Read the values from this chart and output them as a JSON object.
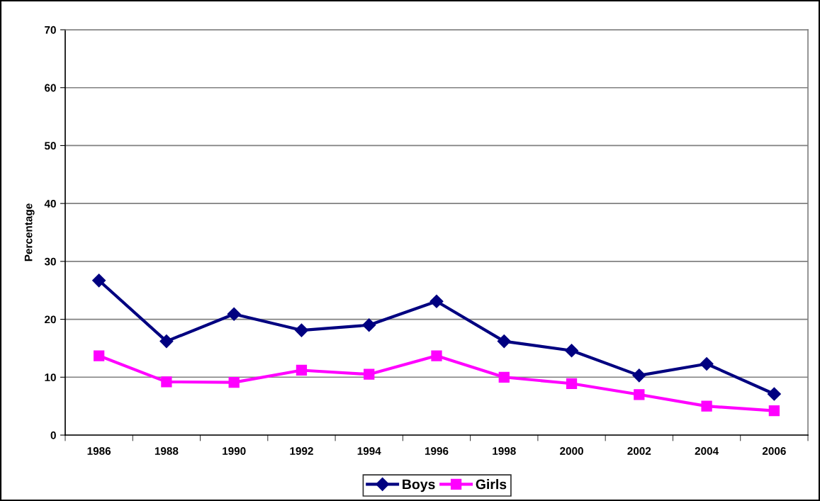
{
  "chart_data": {
    "type": "line",
    "ylabel": "Percentage",
    "categories": [
      "1986",
      "1988",
      "1990",
      "1992",
      "1994",
      "1996",
      "1998",
      "2000",
      "2002",
      "2004",
      "2006"
    ],
    "series": [
      {
        "name": "Boys",
        "color": "#000080",
        "marker": "diamond",
        "values": [
          26.7,
          16.2,
          20.9,
          18.1,
          19.0,
          23.1,
          16.2,
          14.6,
          10.3,
          12.3,
          7.1
        ]
      },
      {
        "name": "Girls",
        "color": "#ff00ff",
        "marker": "square",
        "values": [
          13.7,
          9.2,
          9.1,
          11.2,
          10.5,
          13.7,
          10.0,
          8.9,
          7.0,
          5.0,
          4.2
        ]
      }
    ],
    "ylim": [
      0,
      70
    ],
    "yticks": [
      0,
      10,
      20,
      30,
      40,
      50,
      60,
      70
    ],
    "grid": "y",
    "legend": "bottom",
    "line_style": "solid"
  }
}
